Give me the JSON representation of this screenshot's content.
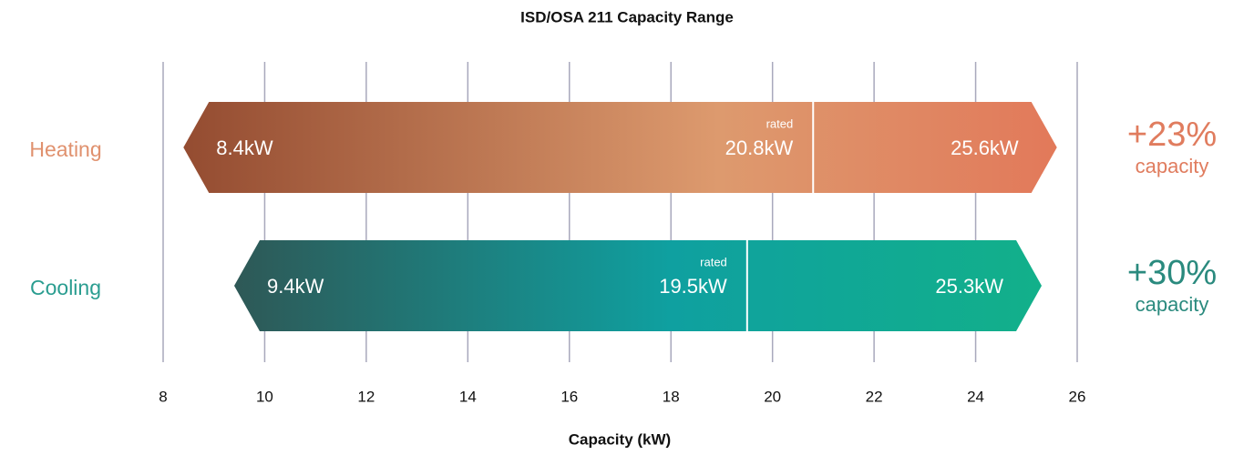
{
  "chart_data": {
    "type": "range",
    "title": "ISD/OSA 211 Capacity Range",
    "xlabel": "Capacity (kW)",
    "xlim": [
      8,
      26
    ],
    "xticks": [
      8,
      10,
      12,
      14,
      16,
      18,
      20,
      22,
      24,
      26
    ],
    "grid": true,
    "series": [
      {
        "name": "Heating",
        "color": "#e0916e",
        "gradient": [
          "#944c31",
          "#dd9a6e",
          "#e2795a"
        ],
        "values": [
          8.4,
          20.8,
          25.6
        ],
        "value_labels": [
          "8.4kW",
          "20.8kW",
          "25.6kW"
        ],
        "rated_label": "rated",
        "increase": "+23%",
        "increase_note": "capacity",
        "increase_color": "#e07c5e"
      },
      {
        "name": "Cooling",
        "color": "#2a9d90",
        "gradient": [
          "#2e5856",
          "#0fa0a0",
          "#12b08a"
        ],
        "values": [
          9.4,
          19.5,
          25.3
        ],
        "value_labels": [
          "9.4kW",
          "19.5kW",
          "25.3kW"
        ],
        "rated_label": "rated",
        "increase": "+30%",
        "increase_note": "capacity",
        "increase_color": "#2a8a7e"
      }
    ]
  }
}
